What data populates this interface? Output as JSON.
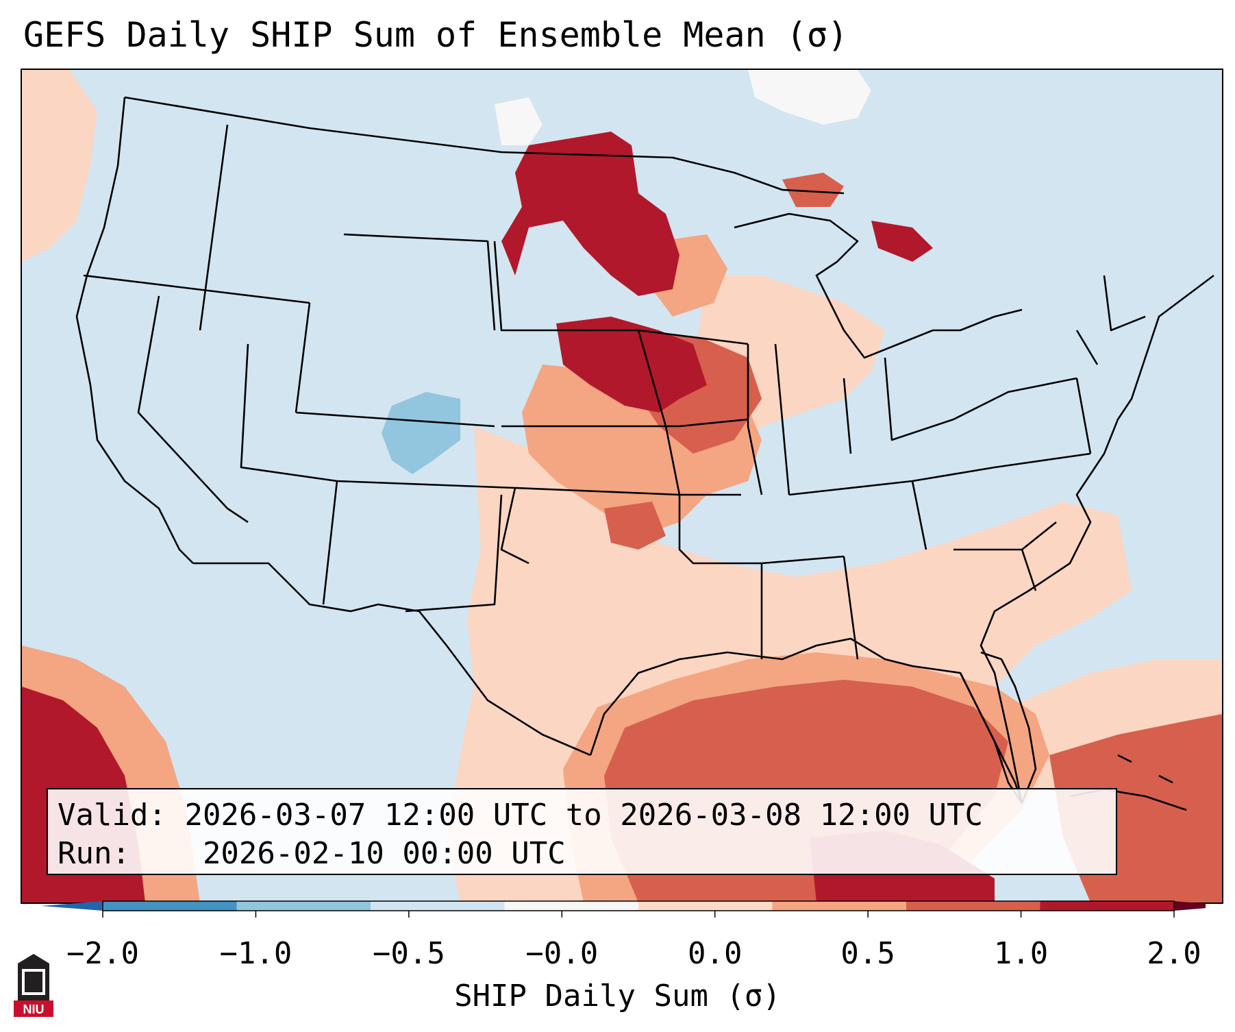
{
  "title": "GEFS Daily SHIP Sum of Ensemble Mean (σ)",
  "info": {
    "valid_label": "Valid:",
    "valid_value": "2026-03-07 12:00 UTC to 2026-03-08 12:00 UTC",
    "run_label": "Run:",
    "run_value": "2026-02-10 00:00 UTC"
  },
  "colorbar": {
    "label": "SHIP Daily Sum (σ)",
    "ticks": [
      "−2.0",
      "−1.0",
      "−0.5",
      "−0.0",
      "0.0",
      "0.5",
      "1.0",
      "2.0"
    ],
    "colors": [
      "#4393c3",
      "#92c5de",
      "#d1e5f0",
      "#f7f7f7",
      "#fddbc7",
      "#f4a582",
      "#d6604d",
      "#b2182b"
    ],
    "under_color": "#2166ac",
    "over_color": "#67001f"
  },
  "logo": {
    "text": "NIU",
    "icon": "university-tower-icon"
  },
  "map": {
    "background_category": "-0.5 to -0.0",
    "anomaly_regions": [
      {
        "name": "northern-plains-max",
        "category": "above 1.0"
      },
      {
        "name": "nebraska-iowa-max",
        "category": "above 1.0"
      },
      {
        "name": "gulf-of-mexico",
        "category": "0.5 to 1.0"
      },
      {
        "name": "southern-us",
        "category": "0.0 to 0.5"
      },
      {
        "name": "colorado-min",
        "category": "-1.0 to -0.5"
      }
    ]
  }
}
